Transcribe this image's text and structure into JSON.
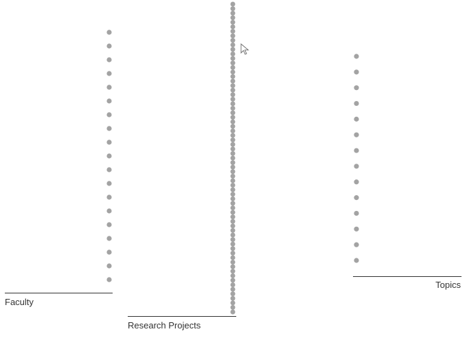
{
  "columns": [
    {
      "key": "faculty",
      "label": "Faculty",
      "node_count": 19
    },
    {
      "key": "research_projects",
      "label": "Research Projects",
      "node_count": 69
    },
    {
      "key": "topics",
      "label": "Topics",
      "node_count": 14
    }
  ],
  "colors": {
    "node": "#a3a3a3",
    "axis": "#333333",
    "label": "#333333",
    "background": "#ffffff"
  },
  "icons": {
    "cursor": "arrow-pointer-icon"
  }
}
